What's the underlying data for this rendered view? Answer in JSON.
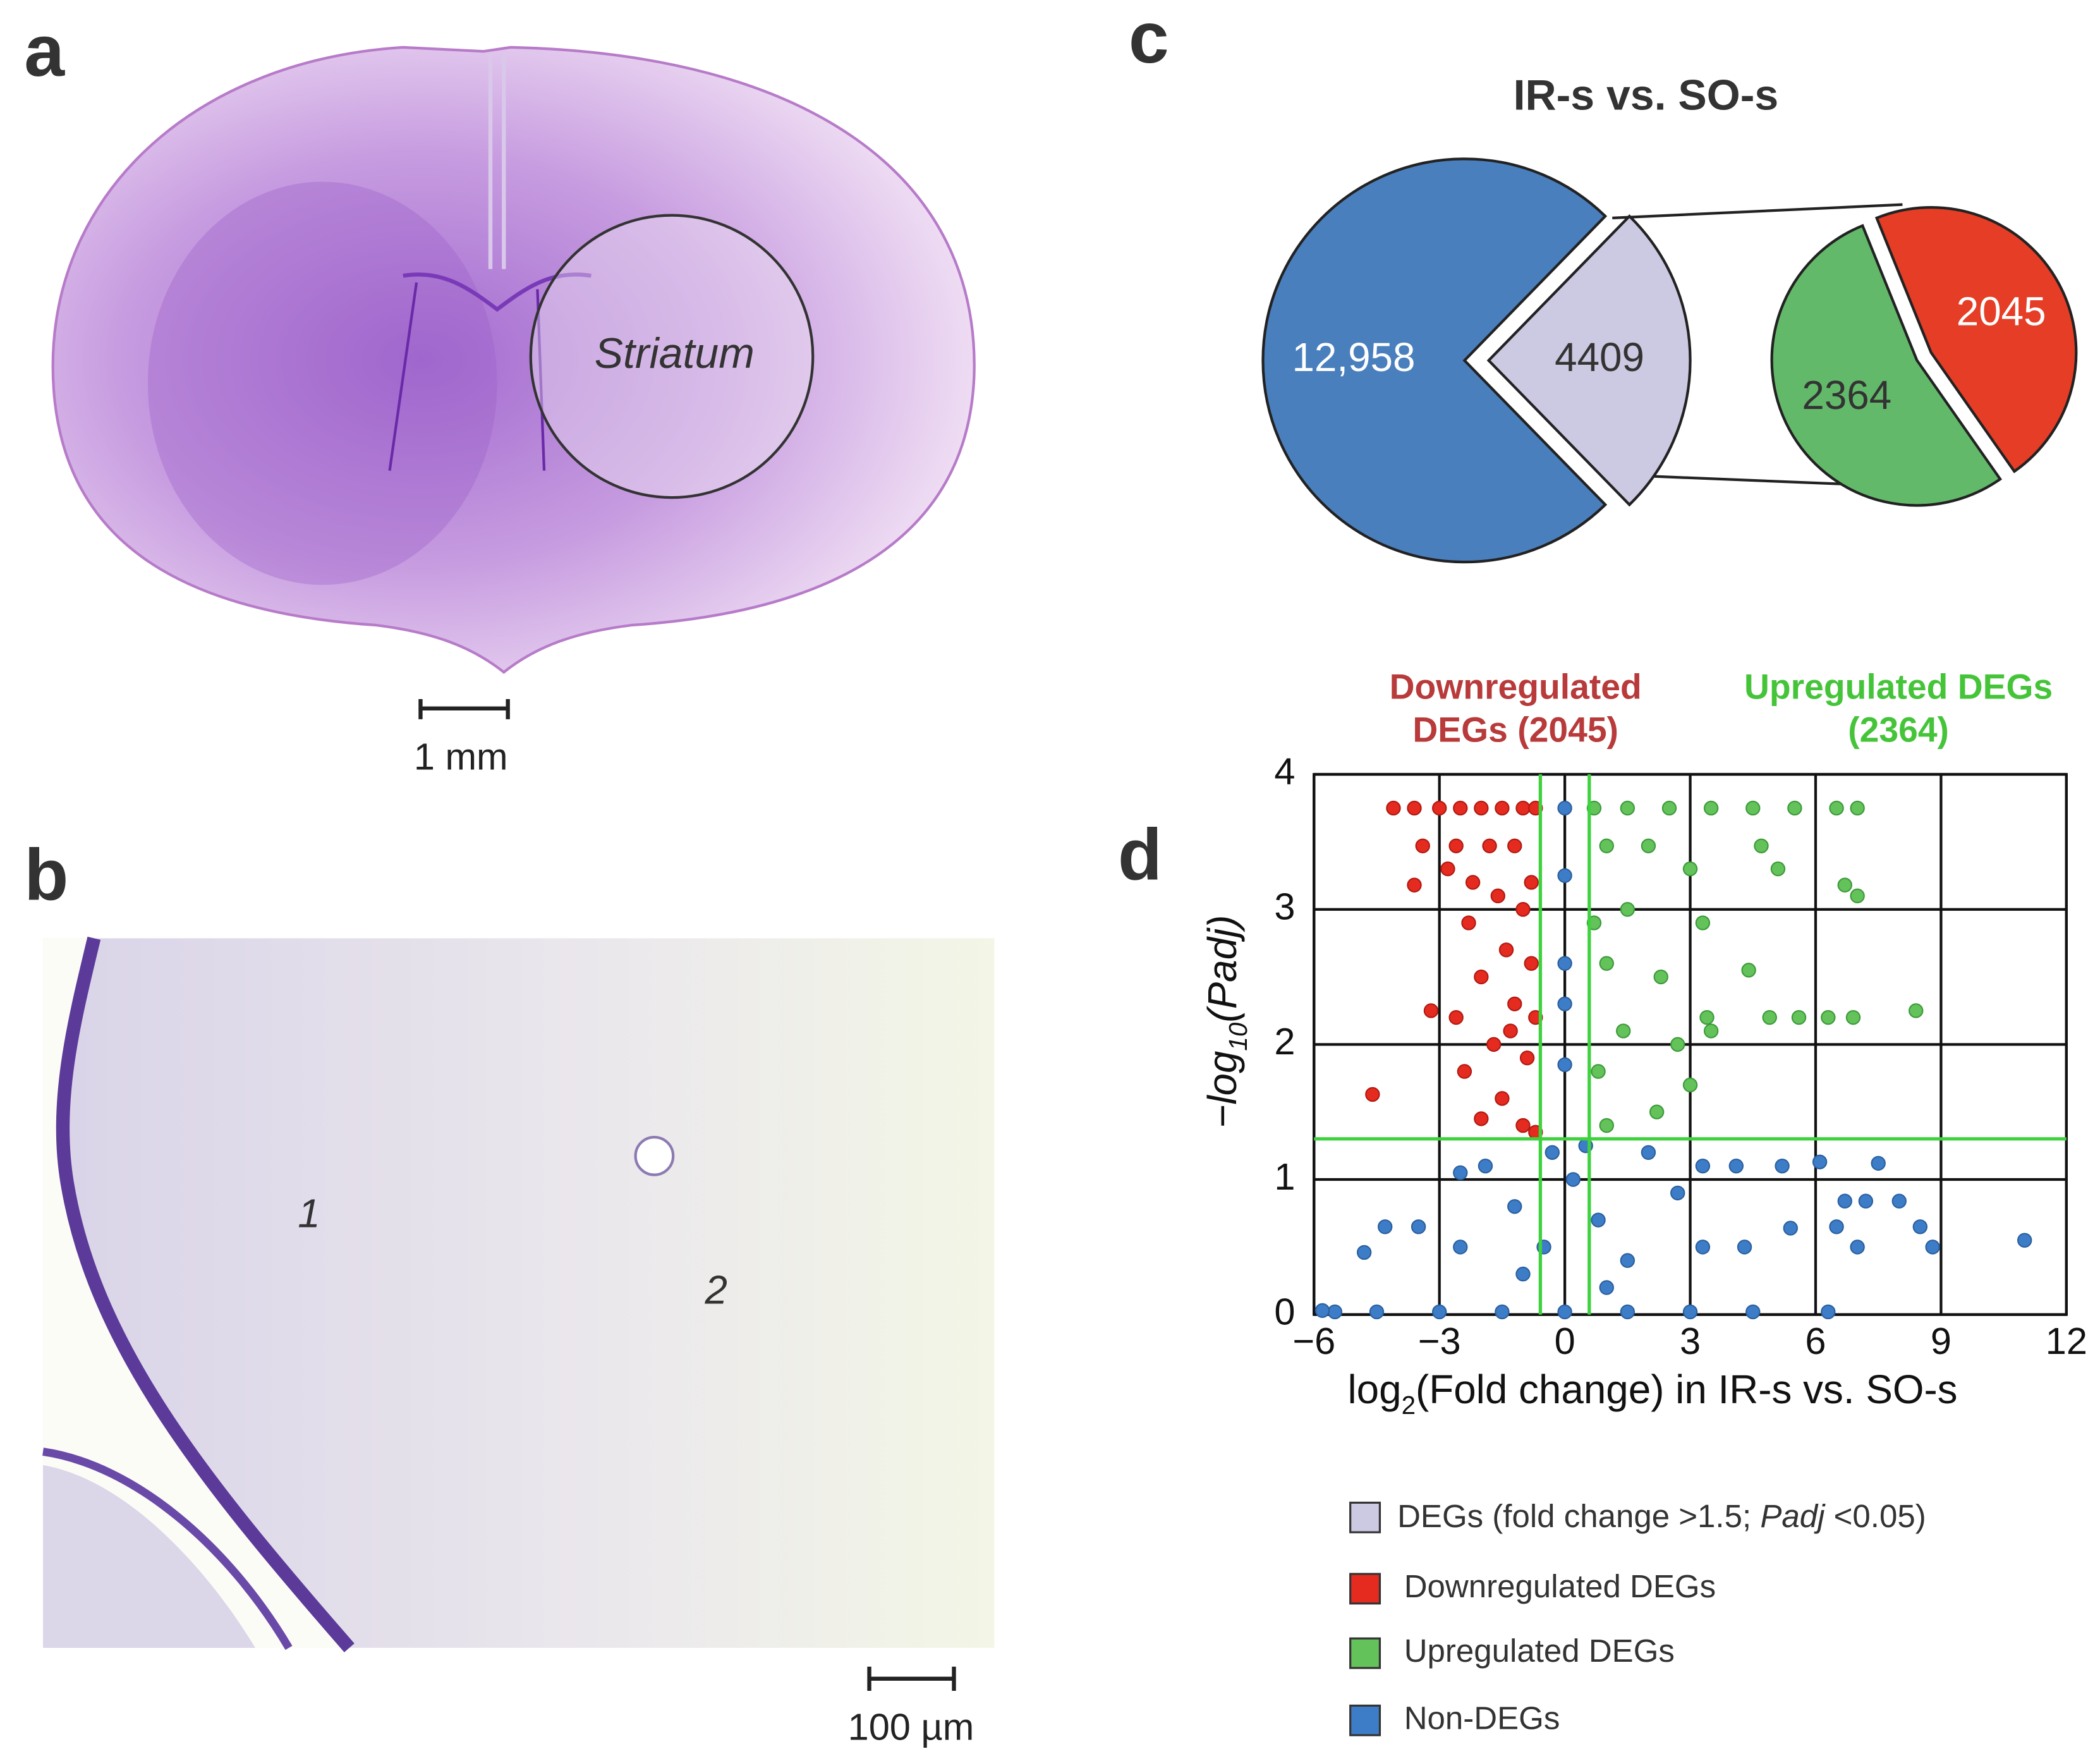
{
  "panels": [
    "a",
    "b",
    "c",
    "d"
  ],
  "images": [
    {
      "region_label": "Striatum",
      "scale_label": "1 mm"
    },
    {
      "region_labels": [
        "1",
        "2"
      ],
      "scale_label": "100 µm"
    }
  ],
  "chart_data": [
    {
      "type": "pie",
      "title": "IR-s vs. SO-s",
      "pies": [
        {
          "values": [
            12958,
            4409
          ],
          "value_labels": [
            "12,958",
            "4409"
          ],
          "colors": [
            "#4a7fbd",
            "#ccc9e3"
          ],
          "label_colors": [
            "#ffffff",
            "#333333"
          ]
        },
        {
          "values": [
            2045,
            2364
          ],
          "colors": [
            "#e53d26",
            "#63b96a"
          ],
          "label_colors": [
            "#ffffff",
            "#333333"
          ]
        }
      ],
      "legend_label_parts": [
        "DEGs (fold change >1.5; ",
        "Padj",
        " <0.05)"
      ],
      "legend_color": "#ccc9e3"
    },
    {
      "type": "scatter",
      "annotations": [
        {
          "lines": [
            "Downregulated",
            "DEGs (2045)"
          ],
          "color": "#b83a3a"
        },
        {
          "lines": [
            "Upregulated DEGs",
            "(2364)"
          ],
          "color": "#45c43a"
        }
      ],
      "xlabel_parts": [
        "log",
        "2",
        "(Fold change) in IR-s vs. SO-s"
      ],
      "ylabel_parts": [
        "−log",
        "10",
        "(Padj)"
      ],
      "xlim": [
        -6,
        12
      ],
      "ylim": [
        0,
        4
      ],
      "xticks": [
        {
          "value": -6,
          "label": "−6"
        },
        {
          "value": -3,
          "label": "−3"
        },
        0,
        3,
        6,
        9,
        12
      ],
      "yticks": [
        0,
        1,
        2,
        3,
        4
      ],
      "grid": true,
      "threshold_x": [
        -0.585,
        0.585
      ],
      "threshold_y": [
        1.301
      ],
      "threshold_color": "#3ed23e",
      "series": [
        {
          "name": "Downregulated DEGs",
          "color": "#e52a1f",
          "x": [
            -4.1,
            -3.6,
            -3.0,
            -2.5,
            -2.0,
            -1.5,
            -1.0,
            -0.7,
            -3.4,
            -2.6,
            -1.8,
            -1.2,
            -3.6,
            -2.8,
            -2.2,
            -1.6,
            -1.0,
            -2.3,
            -1.4,
            -0.8,
            -2.0,
            -1.2,
            -3.2,
            -2.6,
            -1.7,
            -0.9,
            -2.4,
            -1.5,
            -4.6,
            -2.0,
            -1.0,
            -0.7,
            -1.3,
            -0.7,
            -0.8
          ],
          "values": [
            3.75,
            3.75,
            3.75,
            3.75,
            3.75,
            3.75,
            3.75,
            3.75,
            3.47,
            3.47,
            3.47,
            3.47,
            3.18,
            3.3,
            3.2,
            3.1,
            3.0,
            2.9,
            2.7,
            2.6,
            2.5,
            2.3,
            2.25,
            2.2,
            2.0,
            1.9,
            1.8,
            1.6,
            1.63,
            1.45,
            1.4,
            1.35,
            2.1,
            2.2,
            3.2
          ]
        },
        {
          "name": "Upregulated DEGs",
          "color": "#63c25a",
          "x": [
            0.7,
            1.5,
            2.5,
            3.5,
            4.5,
            5.5,
            6.5,
            7.0,
            1.0,
            2.0,
            4.7,
            5.1,
            6.7,
            7.0,
            3.0,
            3.3,
            1.5,
            4.4,
            2.3,
            1.0,
            8.4,
            6.9,
            6.3,
            5.6,
            4.9,
            3.4,
            2.7,
            1.4,
            0.8,
            3.0,
            2.2,
            1.0,
            3.5,
            0.7
          ],
          "values": [
            3.75,
            3.75,
            3.75,
            3.75,
            3.75,
            3.75,
            3.75,
            3.75,
            3.47,
            3.47,
            3.47,
            3.3,
            3.18,
            3.1,
            3.3,
            2.9,
            3.0,
            2.55,
            2.5,
            2.6,
            2.25,
            2.2,
            2.2,
            2.2,
            2.2,
            2.2,
            2.0,
            2.1,
            1.8,
            1.7,
            1.5,
            1.4,
            2.1,
            2.9
          ]
        },
        {
          "name": "Non-DEGs",
          "color": "#3d7dc8",
          "x": [
            0,
            0,
            0,
            0,
            0,
            -5.5,
            -4.5,
            -3,
            -1.5,
            0,
            1.5,
            3,
            4.5,
            6.3,
            -5.8,
            -4.8,
            -4.3,
            -3.5,
            -1.9,
            -1.2,
            -0.5,
            0.2,
            0.8,
            1.5,
            2.7,
            3.3,
            4.1,
            5.2,
            6.1,
            7.5,
            6.7,
            7.2,
            8.0,
            3.3,
            4.3,
            5.4,
            6.5,
            7.0,
            8.5,
            8.8,
            11,
            -2.5,
            -1,
            1.0,
            -0.3,
            0.5,
            2.0,
            -2.5
          ],
          "values": [
            3.75,
            3.25,
            2.6,
            2.3,
            1.85,
            0.02,
            0.02,
            0.02,
            0.02,
            0.02,
            0.02,
            0.02,
            0.02,
            0.02,
            0.03,
            0.46,
            0.65,
            0.65,
            1.1,
            0.8,
            0.5,
            1.0,
            0.7,
            0.4,
            0.9,
            1.1,
            1.1,
            1.1,
            1.13,
            1.12,
            0.84,
            0.84,
            0.84,
            0.5,
            0.5,
            0.64,
            0.65,
            0.5,
            0.65,
            0.5,
            0.55,
            0.5,
            0.3,
            0.2,
            1.2,
            1.25,
            1.2,
            1.05
          ]
        }
      ]
    }
  ]
}
